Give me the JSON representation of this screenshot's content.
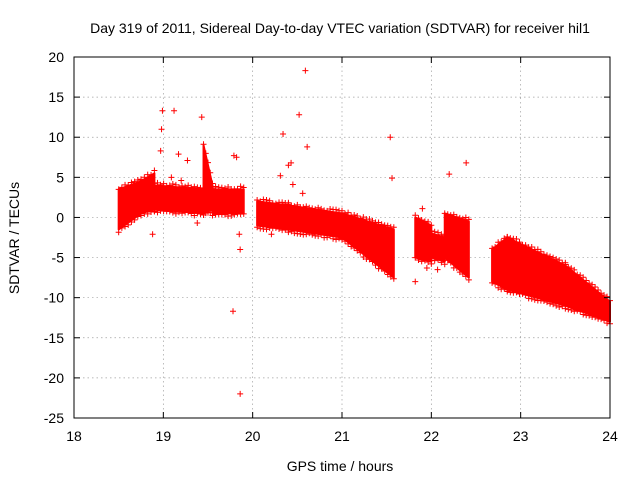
{
  "chart_data": {
    "type": "scatter",
    "title": "Day 319 of 2011, Sidereal Day-to-day VTEC variation (SDTVAR) for receiver hil1",
    "xlabel": "GPS time / hours",
    "ylabel": "SDTVAR / TECUs",
    "xlim": [
      18,
      24
    ],
    "ylim": [
      -25,
      20
    ],
    "xticks": [
      18,
      19,
      20,
      21,
      22,
      23,
      24
    ],
    "yticks": [
      -25,
      -20,
      -15,
      -10,
      -5,
      0,
      5,
      10,
      15,
      20
    ],
    "xtick_labels": [
      "18",
      "19",
      "20",
      "21",
      "22",
      "23",
      "24"
    ],
    "ytick_labels": [
      "-25",
      "-20",
      "-15",
      "-10",
      "-5",
      "0",
      "5",
      "10",
      "15",
      "20"
    ],
    "grid": true,
    "marker": "+",
    "color": "#ff0000",
    "series": [
      {
        "name": "SDTVAR",
        "bands": [
          {
            "x": [
              18.5,
              18.75
            ],
            "top": [
              3.5,
              4.5
            ],
            "bottom": [
              -1.5,
              0.5
            ]
          },
          {
            "x": [
              18.75,
              18.9
            ],
            "top": [
              4.5,
              5.5
            ],
            "bottom": [
              0.5,
              1.0
            ]
          },
          {
            "x": [
              18.9,
              19.45
            ],
            "top": [
              4.0,
              3.5
            ],
            "bottom": [
              1.0,
              0.5
            ]
          },
          {
            "x": [
              19.45,
              19.55
            ],
            "top": [
              9.0,
              4.0
            ],
            "bottom": [
              0.5,
              1.0
            ]
          },
          {
            "x": [
              19.55,
              19.9
            ],
            "top": [
              3.5,
              3.5
            ],
            "bottom": [
              0.5,
              0.5
            ]
          },
          {
            "x": [
              20.05,
              20.4
            ],
            "top": [
              2.0,
              1.5
            ],
            "bottom": [
              -1.0,
              -1.5
            ]
          },
          {
            "x": [
              20.4,
              21.0
            ],
            "top": [
              1.5,
              0.5
            ],
            "bottom": [
              -1.5,
              -2.5
            ]
          },
          {
            "x": [
              21.0,
              21.58
            ],
            "top": [
              0.5,
              -1.5
            ],
            "bottom": [
              -2.5,
              -7.5
            ]
          },
          {
            "x": [
              21.82,
              22.0
            ],
            "top": [
              0.0,
              -1.0
            ],
            "bottom": [
              -5.0,
              -5.5
            ]
          },
          {
            "x": [
              22.0,
              22.15
            ],
            "top": [
              -2.0,
              -2.5
            ],
            "bottom": [
              -5.0,
              -5.5
            ]
          },
          {
            "x": [
              22.15,
              22.42
            ],
            "top": [
              0.5,
              -0.5
            ],
            "bottom": [
              -5.0,
              -7.5
            ]
          },
          {
            "x": [
              22.68,
              22.85
            ],
            "top": [
              -4.0,
              -2.5
            ],
            "bottom": [
              -8.0,
              -9.0
            ]
          },
          {
            "x": [
              22.85,
              23.5
            ],
            "top": [
              -2.5,
              -6.0
            ],
            "bottom": [
              -9.0,
              -11.0
            ]
          },
          {
            "x": [
              23.5,
              24.0
            ],
            "top": [
              -6.0,
              -10.5
            ],
            "bottom": [
              -11.0,
              -13.0
            ]
          }
        ],
        "outliers": [
          [
            18.99,
            13.3
          ],
          [
            19.12,
            13.3
          ],
          [
            18.98,
            11.0
          ],
          [
            19.43,
            12.5
          ],
          [
            18.97,
            8.3
          ],
          [
            19.17,
            7.9
          ],
          [
            19.27,
            7.1
          ],
          [
            19.09,
            5.0
          ],
          [
            19.2,
            4.6
          ],
          [
            19.38,
            -0.7
          ],
          [
            19.79,
            7.7
          ],
          [
            19.82,
            7.5
          ],
          [
            19.78,
            -11.7
          ],
          [
            19.85,
            -2.1
          ],
          [
            19.86,
            -4.0
          ],
          [
            19.86,
            -22.0
          ],
          [
            18.88,
            -2.1
          ],
          [
            20.11,
            -0.9
          ],
          [
            20.21,
            -2.1
          ],
          [
            20.31,
            5.2
          ],
          [
            20.34,
            10.4
          ],
          [
            20.4,
            6.5
          ],
          [
            20.43,
            6.8
          ],
          [
            20.45,
            4.1
          ],
          [
            20.52,
            12.8
          ],
          [
            20.56,
            3.0
          ],
          [
            20.59,
            18.3
          ],
          [
            20.61,
            8.8
          ],
          [
            21.54,
            10.0
          ],
          [
            21.56,
            4.9
          ],
          [
            21.82,
            -8.0
          ],
          [
            21.9,
            1.1
          ],
          [
            21.95,
            -6.3
          ],
          [
            22.07,
            -6.5
          ],
          [
            22.2,
            5.4
          ],
          [
            22.39,
            6.8
          ]
        ]
      }
    ]
  }
}
